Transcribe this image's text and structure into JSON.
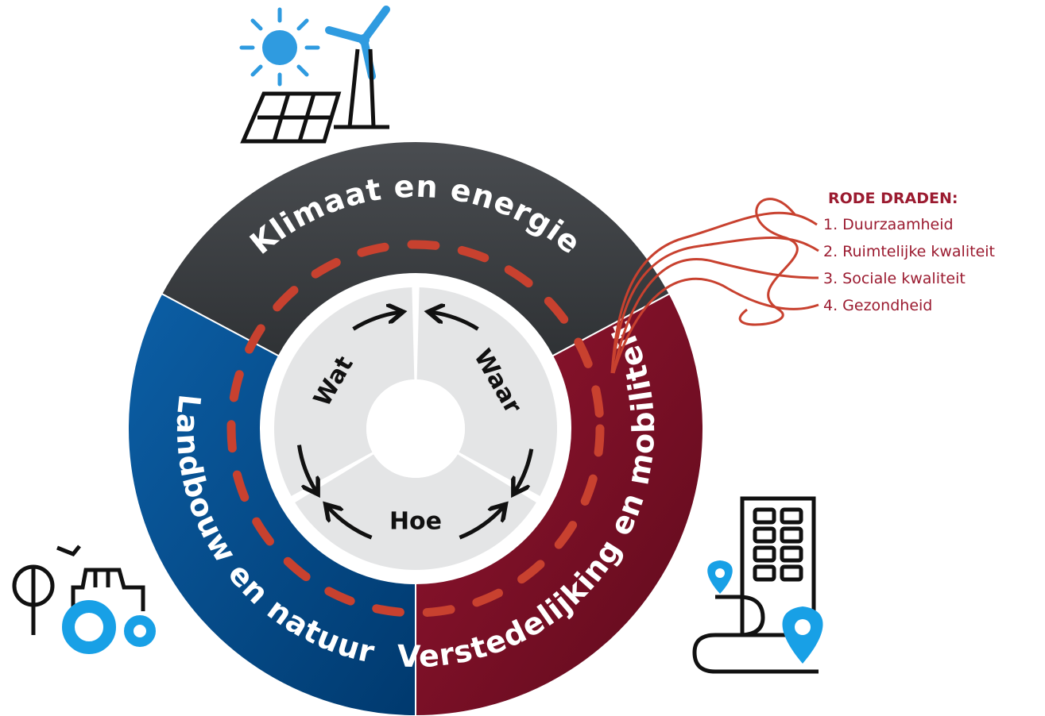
{
  "segments": [
    {
      "label": "Klimaat en energie"
    },
    {
      "label": "Verstedelijking en mobiliteit"
    },
    {
      "label": "Landbouw en natuur"
    }
  ],
  "inner": [
    {
      "label": "Wat"
    },
    {
      "label": "Waar"
    },
    {
      "label": "Hoe"
    }
  ],
  "legend": {
    "title": "RODE DRADEN:",
    "items": [
      "1. Duurzaamheid",
      "2. Ruimtelijke kwaliteit",
      "3. Sociale kwaliteit",
      "4. Gezondheid"
    ]
  }
}
